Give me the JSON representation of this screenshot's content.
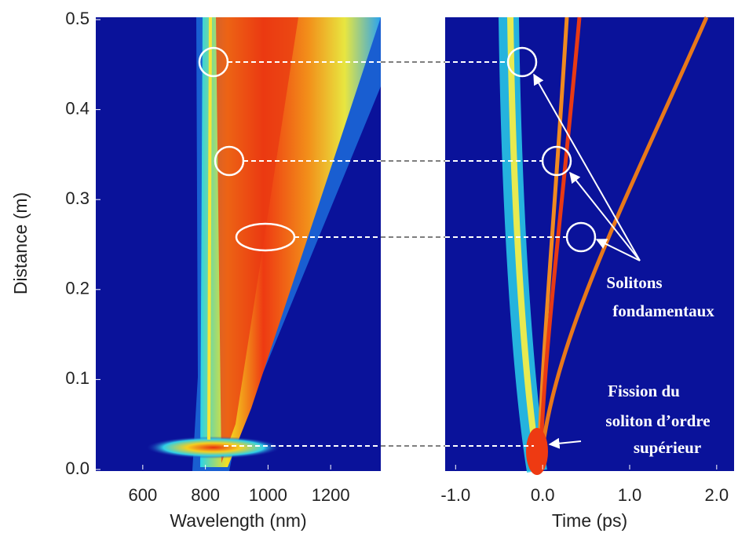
{
  "chart_data": [
    {
      "type": "heatmap",
      "xlabel": "Wavelength (nm)",
      "ylabel": "Distance (m)",
      "xlim": [
        450,
        1360
      ],
      "xticks": [
        600,
        800,
        1000,
        1200
      ],
      "ylim": [
        0,
        0.5
      ],
      "yticks": [
        {
          "value": 0,
          "label": "0.0"
        },
        0.1,
        0.2,
        0.3,
        0.4,
        0.5
      ]
    },
    {
      "type": "heatmap",
      "xlabel": "Time (ps)",
      "xlim": [
        -1.12,
        2.2
      ],
      "xticks": [
        {
          "value": -1,
          "label": "-1.0"
        },
        {
          "value": 0,
          "label": "0.0"
        },
        {
          "value": 1,
          "label": "1.0"
        },
        {
          "value": 2,
          "label": "2.0"
        }
      ],
      "ylim": [
        0,
        0.5
      ],
      "annotations": [
        "Solitons",
        "fondamentaux",
        "Fission du",
        "soliton d’ordre",
        "supérieur"
      ]
    }
  ]
}
